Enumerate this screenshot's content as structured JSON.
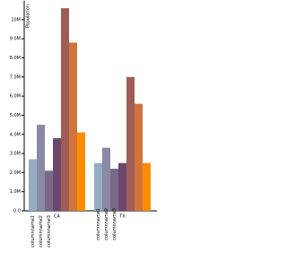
{
  "chart_data": {
    "type": "grouped-bar",
    "y_label": "Population",
    "categories": [
      "CA",
      "TX"
    ],
    "series": [
      {
        "name": "columnname1",
        "color": "#98abc5",
        "values": [
          2700000,
          2500000
        ]
      },
      {
        "name": "columnname2",
        "color": "#8a89a6",
        "values": [
          4500000,
          3300000
        ]
      },
      {
        "name": "columnname3",
        "color": "#7b6888",
        "values": [
          2100000,
          2200000
        ]
      },
      {
        "color": "#6b486b",
        "values": [
          3800000,
          2500000
        ]
      },
      {
        "color": "#a05d56",
        "values": [
          10600000,
          7000000
        ]
      },
      {
        "color": "#d0743c",
        "values": [
          8800000,
          5600000
        ]
      },
      {
        "color": "#ff8c00",
        "values": [
          4100000,
          2500000
        ]
      }
    ],
    "ylim": [
      0,
      11000000
    ],
    "yticks": [
      {
        "value": 0,
        "label": "0.0"
      },
      {
        "value": 1000000,
        "label": "1.0M"
      },
      {
        "value": 2000000,
        "label": "2.0M"
      },
      {
        "value": 3000000,
        "label": "3.0M"
      },
      {
        "value": 4000000,
        "label": "4.0M"
      },
      {
        "value": 5000000,
        "label": "5.0M"
      },
      {
        "value": 6000000,
        "label": "6.0M"
      },
      {
        "value": 7000000,
        "label": "7.0M"
      },
      {
        "value": 8000000,
        "label": "8.0M"
      },
      {
        "value": 9000000,
        "label": "9.0M"
      },
      {
        "value": 10000000,
        "label": "10M"
      }
    ]
  }
}
